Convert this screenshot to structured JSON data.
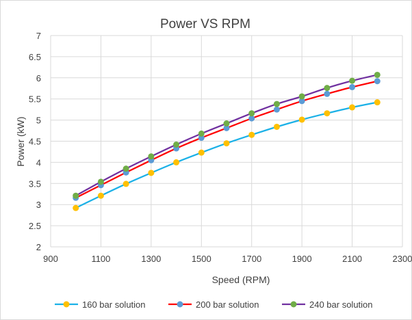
{
  "chart_data": {
    "type": "line",
    "title": "Power VS RPM",
    "xlabel": "Speed (RPM)",
    "ylabel": "Power (kW)",
    "xlim": [
      900,
      2300
    ],
    "ylim": [
      2,
      7
    ],
    "xticks": [
      "900",
      "1100",
      "1300",
      "1500",
      "1700",
      "1900",
      "2100",
      "2300"
    ],
    "yticks": [
      "2",
      "2.5",
      "3",
      "3.5",
      "4",
      "4.5",
      "5",
      "5.5",
      "6",
      "6.5",
      "7"
    ],
    "grid": true,
    "legend_position": "bottom",
    "x": [
      1000,
      1100,
      1200,
      1300,
      1400,
      1500,
      1600,
      1700,
      1800,
      1900,
      2000,
      2100,
      2200
    ],
    "series": [
      {
        "name": "160 bar solution",
        "line_color": "#1bb1e7",
        "marker_color": "#ffc000",
        "values": [
          2.92,
          3.21,
          3.49,
          3.75,
          4.0,
          4.23,
          4.45,
          4.65,
          4.84,
          5.01,
          5.16,
          5.3,
          5.42
        ]
      },
      {
        "name": "200 bar solution",
        "line_color": "#ff0000",
        "marker_color": "#5b9bd5",
        "values": [
          3.16,
          3.46,
          3.76,
          4.05,
          4.33,
          4.58,
          4.81,
          5.04,
          5.25,
          5.45,
          5.62,
          5.78,
          5.92
        ]
      },
      {
        "name": "240 bar solution",
        "line_color": "#7030a0",
        "marker_color": "#70ad47",
        "values": [
          3.21,
          3.54,
          3.85,
          4.14,
          4.42,
          4.68,
          4.92,
          5.16,
          5.38,
          5.56,
          5.76,
          5.93,
          6.07
        ]
      }
    ]
  }
}
